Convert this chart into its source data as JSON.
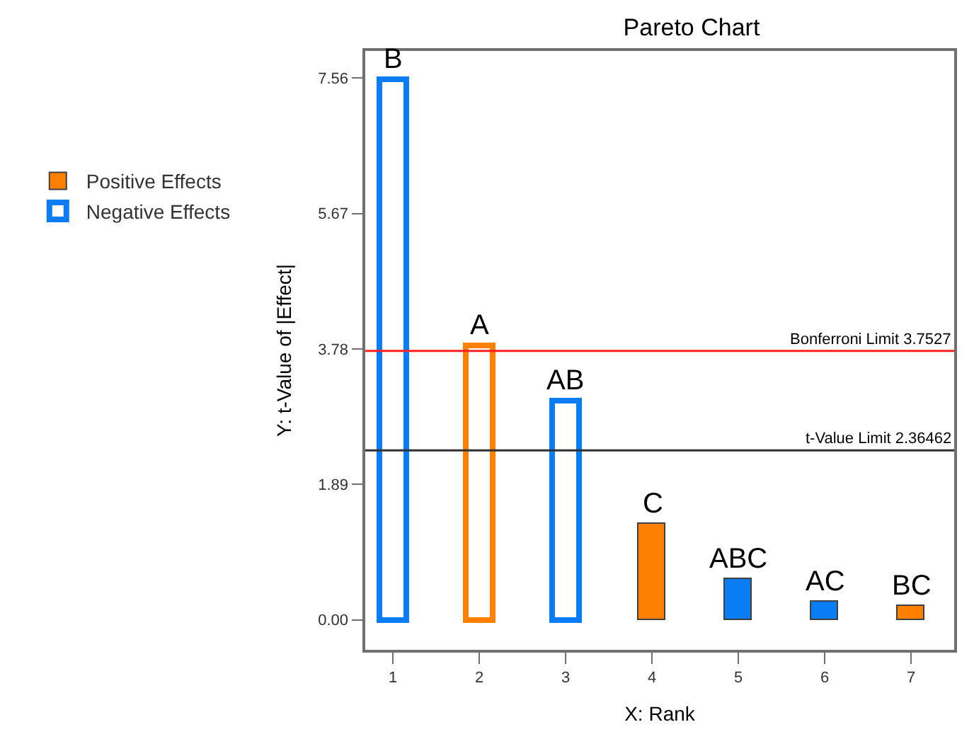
{
  "chart_data": {
    "type": "bar",
    "title": "Pareto Chart",
    "xlabel": "X: Rank",
    "ylabel": "Y: t-Value of |Effect|",
    "x": [
      1,
      2,
      3,
      4,
      5,
      6,
      7
    ],
    "series": [
      {
        "name": "Positive Effects",
        "color": "#ff8000",
        "values": [
          null,
          3.83,
          null,
          1.34,
          null,
          null,
          0.2
        ],
        "value_labels": [
          null,
          "A",
          null,
          "C",
          null,
          null,
          "BC"
        ]
      },
      {
        "name": "Negative Effects",
        "color": "#0a7df5",
        "values": [
          7.54,
          null,
          3.06,
          null,
          0.56,
          0.25,
          null
        ],
        "value_labels": [
          "B",
          null,
          "AB",
          null,
          "ABC",
          "AC",
          null
        ]
      }
    ],
    "xlim": [
      0.68,
      7.5
    ],
    "xticks": [
      1,
      2,
      3,
      4,
      5,
      6,
      7
    ],
    "ylim": [
      -0.42,
      7.94
    ],
    "yticks": [
      {
        "value": 0,
        "label": "0.00"
      },
      1.89,
      3.78,
      5.67,
      7.56
    ],
    "ref_lines": [
      {
        "axis": "y",
        "value": 3.7527,
        "label": "Bonferroni Limit 3.7527",
        "color": "#ff2020"
      },
      {
        "axis": "y",
        "value": 2.36462,
        "label": "t-Value Limit 2.36462",
        "color": "#303030"
      }
    ],
    "legend": "left"
  }
}
